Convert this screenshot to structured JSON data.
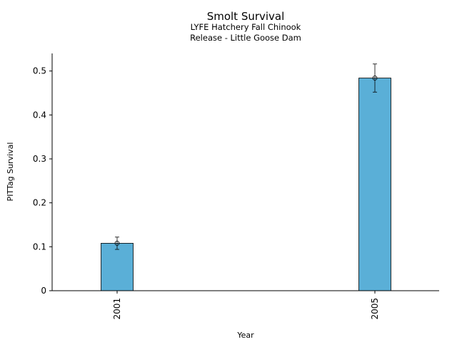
{
  "chart_data": {
    "type": "bar",
    "title": "Smolt Survival",
    "subtitle_line1": "LYFE Hatchery Fall Chinook",
    "subtitle_line2": "Release - Little Goose Dam",
    "xlabel": "Year",
    "ylabel": "PITTag Survival",
    "categories": [
      "2001",
      "2005"
    ],
    "values": [
      0.108,
      0.484
    ],
    "error_low": [
      0.094,
      0.452
    ],
    "error_high": [
      0.122,
      0.516
    ],
    "ylim": [
      0,
      0.54
    ],
    "yticks": [
      "0",
      "0.1",
      "0.2",
      "0.3",
      "0.4",
      "0.5"
    ],
    "ytick_values": [
      0,
      0.1,
      0.2,
      0.3,
      0.4,
      0.5
    ],
    "grid": false,
    "bar_color": "#5aafd7",
    "bar_edge_color": "#000000"
  }
}
